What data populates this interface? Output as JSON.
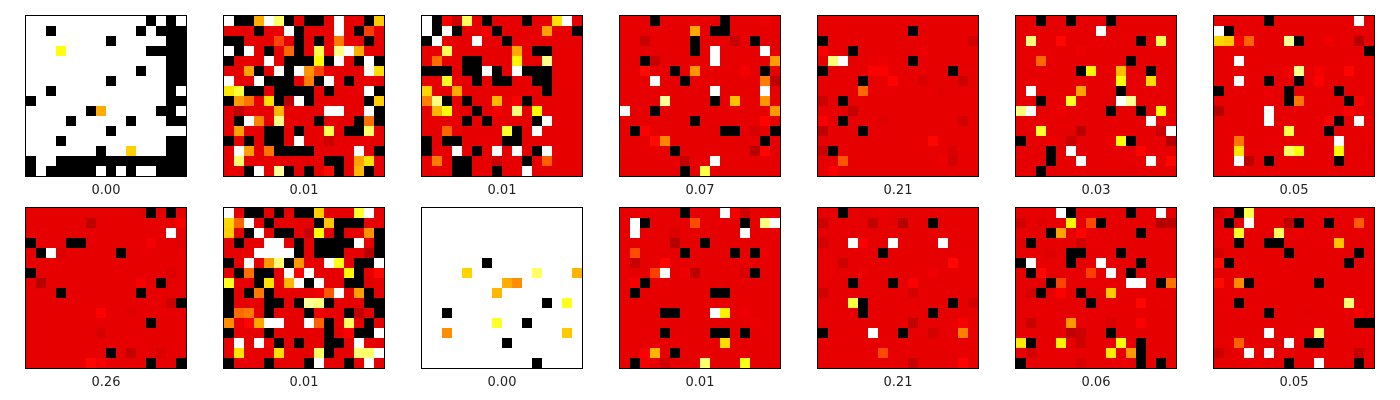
{
  "chart_data": {
    "type": "heatmap",
    "colormap": "hot",
    "grid_size": 16,
    "layout": {
      "rows": 2,
      "columns": 7
    },
    "panels": [
      {
        "caption": "0.00",
        "base": 1.0,
        "fg": "white",
        "white_frac": 0.02,
        "bright_frac": 0.02,
        "black_frac": 0.08,
        "seed": 11,
        "lines": {
          "rows": [
            14,
            15
          ],
          "cols": [
            14,
            15
          ]
        }
      },
      {
        "caption": "0.01",
        "base": 0.33,
        "fg": "mixed",
        "white_frac": 0.12,
        "bright_frac": 0.14,
        "black_frac": 0.24,
        "seed": 21
      },
      {
        "caption": "0.01",
        "base": 0.33,
        "fg": "mixed",
        "white_frac": 0.06,
        "bright_frac": 0.14,
        "black_frac": 0.22,
        "seed": 31,
        "lines": {
          "rows": [
            5
          ],
          "cols": [
            1,
            4,
            7
          ]
        },
        "empty_right": 3
      },
      {
        "caption": "0.07",
        "base": 0.33,
        "fg": "mixed",
        "white_frac": 0.04,
        "bright_frac": 0.04,
        "black_frac": 0.08,
        "seed": 41
      },
      {
        "caption": "0.21",
        "base": 0.33,
        "fg": "mixed",
        "white_frac": 0.004,
        "bright_frac": 0.01,
        "black_frac": 0.03,
        "seed": 51
      },
      {
        "caption": "0.03",
        "base": 0.33,
        "fg": "mixed",
        "white_frac": 0.03,
        "bright_frac": 0.08,
        "black_frac": 0.09,
        "seed": 61
      },
      {
        "caption": "0.05",
        "base": 0.33,
        "fg": "mixed",
        "white_frac": 0.03,
        "bright_frac": 0.04,
        "black_frac": 0.05,
        "seed": 71
      },
      {
        "caption": "0.26",
        "base": 0.33,
        "fg": "mixed",
        "white_frac": 0.01,
        "bright_frac": 0.01,
        "black_frac": 0.06,
        "seed": 81
      },
      {
        "caption": "0.01",
        "base": 0.33,
        "fg": "mixed",
        "white_frac": 0.16,
        "bright_frac": 0.12,
        "black_frac": 0.24,
        "seed": 91
      },
      {
        "caption": "0.00",
        "base": 1.0,
        "fg": "mixed",
        "white_frac": 0.0,
        "bright_frac": 0.04,
        "black_frac": 0.02,
        "seed": 101,
        "lines": {
          "rows": [],
          "cols": []
        }
      },
      {
        "caption": "0.01",
        "base": 0.33,
        "fg": "mixed",
        "white_frac": 0.03,
        "bright_frac": 0.05,
        "black_frac": 0.07,
        "seed": 111
      },
      {
        "caption": "0.21",
        "base": 0.33,
        "fg": "mixed",
        "white_frac": 0.004,
        "bright_frac": 0.01,
        "black_frac": 0.03,
        "seed": 121
      },
      {
        "caption": "0.06",
        "base": 0.33,
        "fg": "mixed",
        "white_frac": 0.03,
        "bright_frac": 0.05,
        "black_frac": 0.12,
        "seed": 131
      },
      {
        "caption": "0.05",
        "base": 0.33,
        "fg": "mixed",
        "white_frac": 0.03,
        "bright_frac": 0.04,
        "black_frac": 0.05,
        "seed": 141
      }
    ]
  }
}
